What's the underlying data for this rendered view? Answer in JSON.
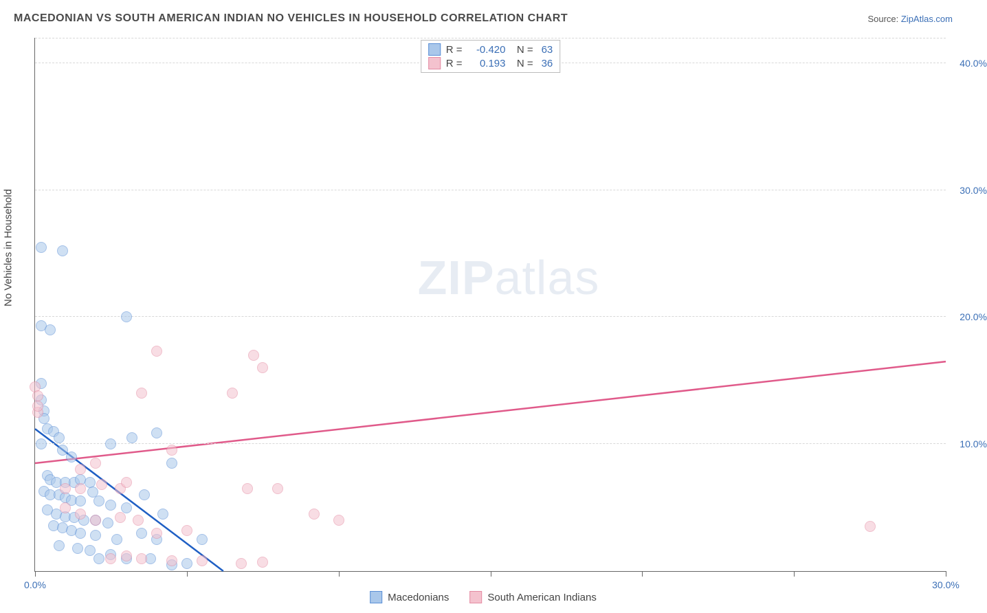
{
  "title": "MACEDONIAN VS SOUTH AMERICAN INDIAN NO VEHICLES IN HOUSEHOLD CORRELATION CHART",
  "source_prefix": "Source: ",
  "source_link": "ZipAtlas.com",
  "y_axis_label": "No Vehicles in Household",
  "watermark_a": "ZIP",
  "watermark_b": "atlas",
  "chart": {
    "type": "scatter",
    "xlim": [
      0,
      30
    ],
    "ylim": [
      0,
      42
    ],
    "xtick_positions": [
      0,
      5,
      10,
      15,
      20,
      25,
      30
    ],
    "xtick_labels_shown": {
      "0": "0.0%",
      "30": "30.0%"
    },
    "ytick_positions": [
      10,
      20,
      30,
      40
    ],
    "ytick_labels": {
      "10": "10.0%",
      "20": "20.0%",
      "30": "30.0%",
      "40": "40.0%"
    },
    "background_color": "#ffffff",
    "grid_color": "#d8d8d8",
    "axis_color": "#666666",
    "label_color": "#3b6fb6",
    "point_radius": 8,
    "point_opacity": 0.55,
    "series": [
      {
        "name": "Macedonians",
        "fill": "#a9c7ea",
        "stroke": "#5a8fd6",
        "trend_color": "#1f5fc4",
        "R": "-0.420",
        "N": "63",
        "trend_line": {
          "x1": 0,
          "y1": 11.2,
          "x2": 6.2,
          "y2": 0
        },
        "points": [
          [
            0.2,
            25.5
          ],
          [
            0.9,
            25.2
          ],
          [
            0.2,
            19.3
          ],
          [
            0.5,
            19.0
          ],
          [
            3.0,
            20.0
          ],
          [
            0.2,
            14.8
          ],
          [
            0.2,
            13.5
          ],
          [
            0.3,
            12.6
          ],
          [
            0.3,
            12.0
          ],
          [
            0.4,
            11.2
          ],
          [
            0.6,
            11.0
          ],
          [
            0.8,
            10.5
          ],
          [
            0.2,
            10.0
          ],
          [
            0.9,
            9.5
          ],
          [
            1.2,
            9.0
          ],
          [
            4.0,
            10.9
          ],
          [
            0.4,
            7.5
          ],
          [
            0.5,
            7.2
          ],
          [
            0.7,
            7.0
          ],
          [
            1.0,
            7.0
          ],
          [
            1.3,
            7.0
          ],
          [
            1.5,
            7.2
          ],
          [
            1.8,
            7.0
          ],
          [
            2.5,
            10.0
          ],
          [
            3.2,
            10.5
          ],
          [
            4.5,
            8.5
          ],
          [
            0.3,
            6.3
          ],
          [
            0.5,
            6.0
          ],
          [
            0.8,
            6.0
          ],
          [
            1.0,
            5.8
          ],
          [
            1.2,
            5.6
          ],
          [
            1.5,
            5.5
          ],
          [
            1.9,
            6.2
          ],
          [
            2.1,
            5.5
          ],
          [
            2.5,
            5.2
          ],
          [
            3.0,
            5.0
          ],
          [
            0.4,
            4.8
          ],
          [
            0.7,
            4.5
          ],
          [
            1.0,
            4.3
          ],
          [
            1.3,
            4.2
          ],
          [
            1.6,
            4.0
          ],
          [
            2.0,
            4.0
          ],
          [
            2.4,
            3.8
          ],
          [
            0.6,
            3.6
          ],
          [
            0.9,
            3.4
          ],
          [
            1.2,
            3.2
          ],
          [
            1.5,
            3.0
          ],
          [
            2.0,
            2.8
          ],
          [
            2.7,
            2.5
          ],
          [
            3.5,
            3.0
          ],
          [
            4.0,
            2.5
          ],
          [
            0.8,
            2.0
          ],
          [
            1.4,
            1.8
          ],
          [
            1.8,
            1.6
          ],
          [
            2.1,
            1.0
          ],
          [
            2.5,
            1.3
          ],
          [
            3.0,
            1.0
          ],
          [
            3.8,
            1.0
          ],
          [
            4.5,
            0.5
          ],
          [
            5.0,
            0.6
          ],
          [
            5.5,
            2.5
          ],
          [
            4.2,
            4.5
          ],
          [
            3.6,
            6.0
          ]
        ]
      },
      {
        "name": "South American Indians",
        "fill": "#f4c2ce",
        "stroke": "#e48ba3",
        "trend_color": "#e05a8a",
        "R": "0.193",
        "N": "36",
        "trend_line": {
          "x1": 0,
          "y1": 8.5,
          "x2": 30,
          "y2": 16.5
        },
        "points": [
          [
            0.0,
            14.5
          ],
          [
            0.1,
            13.8
          ],
          [
            0.1,
            12.5
          ],
          [
            0.1,
            13.0
          ],
          [
            4.0,
            17.3
          ],
          [
            7.5,
            16.0
          ],
          [
            7.2,
            17.0
          ],
          [
            3.5,
            14.0
          ],
          [
            6.5,
            14.0
          ],
          [
            1.5,
            8.0
          ],
          [
            2.0,
            8.5
          ],
          [
            1.0,
            6.5
          ],
          [
            1.5,
            6.5
          ],
          [
            2.2,
            6.8
          ],
          [
            2.8,
            6.5
          ],
          [
            3.0,
            7.0
          ],
          [
            4.5,
            9.5
          ],
          [
            1.0,
            5.0
          ],
          [
            1.5,
            4.5
          ],
          [
            2.0,
            4.0
          ],
          [
            2.8,
            4.2
          ],
          [
            3.4,
            4.0
          ],
          [
            4.0,
            3.0
          ],
          [
            5.0,
            3.2
          ],
          [
            7.0,
            6.5
          ],
          [
            8.0,
            6.5
          ],
          [
            9.2,
            4.5
          ],
          [
            10.0,
            4.0
          ],
          [
            2.5,
            1.0
          ],
          [
            3.0,
            1.2
          ],
          [
            3.5,
            1.0
          ],
          [
            4.5,
            0.8
          ],
          [
            5.5,
            0.8
          ],
          [
            6.8,
            0.6
          ],
          [
            7.5,
            0.7
          ],
          [
            27.5,
            3.5
          ]
        ]
      }
    ]
  }
}
